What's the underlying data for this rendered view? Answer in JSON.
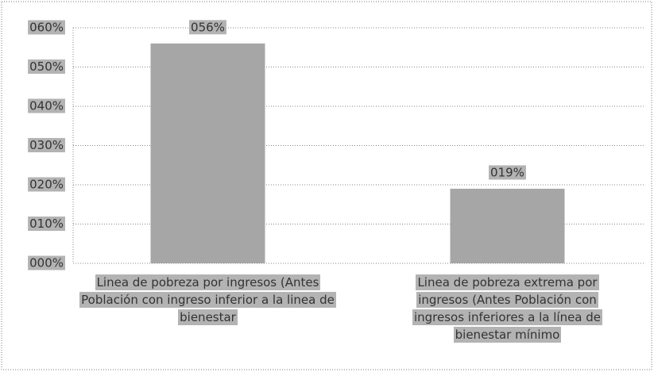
{
  "chart_data": {
    "type": "bar",
    "categories": [
      "Linea de pobreza por ingresos (Antes Población con ingreso inferior a la linea de bienestar",
      "Linea de pobreza extrema por ingresos (Antes Población con ingresos inferiores a la línea de bienestar mínimo"
    ],
    "values": [
      56,
      19
    ],
    "value_labels": [
      "056%",
      "019%"
    ],
    "color": "#a6a6a6",
    "ylim": [
      0,
      60
    ],
    "yticks": [
      {
        "value": 0,
        "label": "000%"
      },
      {
        "value": 10,
        "label": "010%"
      },
      {
        "value": 20,
        "label": "020%"
      },
      {
        "value": 30,
        "label": "030%"
      },
      {
        "value": 40,
        "label": "040%"
      },
      {
        "value": 50,
        "label": "050%"
      },
      {
        "value": 60,
        "label": "060%"
      }
    ],
    "grid": true
  }
}
